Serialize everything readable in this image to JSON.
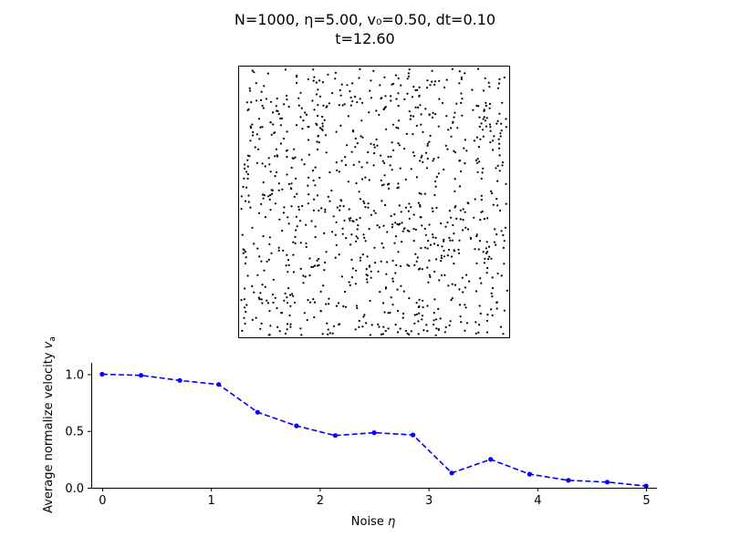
{
  "figure": {
    "title_line1": "N=1000, η=5.00, v₀=0.50, dt=0.10",
    "title_line2": "t=12.60"
  },
  "chart_data": [
    {
      "type": "scatter",
      "title": "",
      "points": 1000,
      "color": "#000000",
      "xlim": [
        0,
        1
      ],
      "ylim": [
        0,
        1
      ],
      "axes_visible": false,
      "grid": false
    },
    {
      "type": "line",
      "title": "",
      "xlabel": "Noise η",
      "ylabel": "Average normalize velocity v_a",
      "ylabel_parts": {
        "main": "Average normalize velocity ",
        "var": "v",
        "sub": "a"
      },
      "xlabel_parts": {
        "main": "Noise ",
        "var": "η"
      },
      "xlim": [
        -0.1,
        5.1
      ],
      "ylim": [
        0,
        1.1
      ],
      "xticks": [
        0,
        1,
        2,
        3,
        4,
        5
      ],
      "xtick_labels": [
        "0",
        "1",
        "2",
        "3",
        "4",
        "5"
      ],
      "yticks": [
        0.0,
        0.5,
        1.0
      ],
      "ytick_labels": [
        "0.0",
        "0.5",
        "1.0"
      ],
      "grid": false,
      "series": [
        {
          "color": "#0000ff",
          "linestyle": "dashed",
          "marker": "circle",
          "x": [
            0.0,
            0.357,
            0.714,
            1.071,
            1.429,
            1.786,
            2.143,
            2.5,
            2.857,
            3.214,
            3.571,
            3.929,
            4.286,
            4.643,
            5.0
          ],
          "y": [
            1.0,
            0.99,
            0.945,
            0.91,
            0.665,
            0.545,
            0.46,
            0.485,
            0.465,
            0.13,
            0.25,
            0.12,
            0.065,
            0.05,
            0.015
          ]
        }
      ]
    }
  ]
}
